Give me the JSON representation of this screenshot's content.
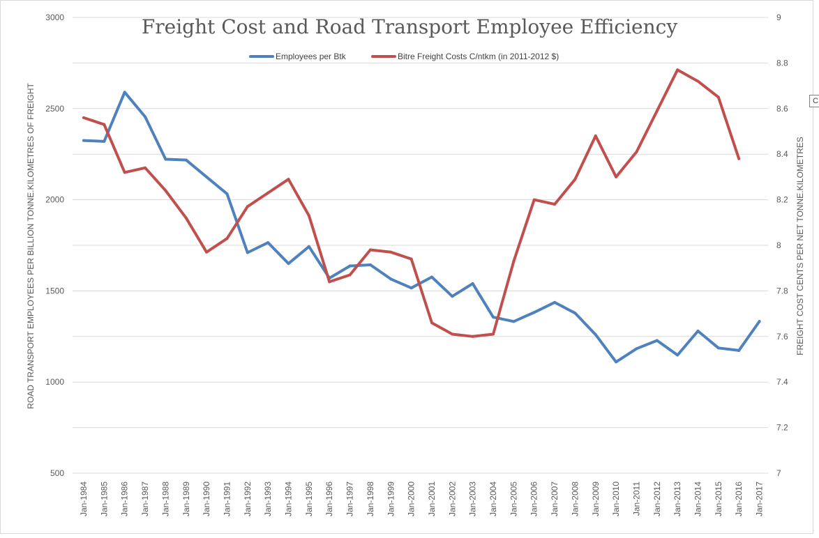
{
  "chart_data": {
    "type": "line",
    "title": "Freight Cost and Road Transport Employee Efficiency",
    "categories": [
      "Jan-1984",
      "Jan-1985",
      "Jan-1986",
      "Jan-1987",
      "Jan-1988",
      "Jan-1989",
      "Jan-1990",
      "Jan-1991",
      "Jan-1992",
      "Jan-1993",
      "Jan-1994",
      "Jan-1995",
      "Jan-1996",
      "Jan-1997",
      "Jan-1998",
      "Jan-1999",
      "Jan-2000",
      "Jan-2001",
      "Jan-2002",
      "Jan-2003",
      "Jan-2004",
      "Jan-2005",
      "Jan-2006",
      "Jan-2007",
      "Jan-2008",
      "Jan-2009",
      "Jan-2010",
      "Jan-2011",
      "Jan-2012",
      "Jan-2013",
      "Jan-2014",
      "Jan-2015",
      "Jan-2016",
      "Jan-2017"
    ],
    "ylabel_left": "ROAD TRANSPORT EMPLOYEES PER BILLION TONNE.KILOMETRES OF FREIGHT",
    "ylabel_right": "FREIGHT COST CENTS PER NET TONNE.KILOMETRES",
    "ylim_left": [
      500,
      3000
    ],
    "ylim_right": [
      7,
      9
    ],
    "yticks_left": [
      "500",
      "1000",
      "1500",
      "2000",
      "2500",
      "3000"
    ],
    "yticks_right": [
      "7",
      "7.2",
      "7.4",
      "7.6",
      "7.8",
      "8",
      "8.2",
      "8.4",
      "8.6",
      "8.8",
      "9"
    ],
    "grid": true,
    "legend_position": "top",
    "series": [
      {
        "name": "Employees per Btk",
        "axis": "left",
        "color": "#4f81bd",
        "values": [
          2325,
          2320,
          2590,
          2455,
          2222,
          2218,
          2125,
          2032,
          1710,
          1765,
          1650,
          1743,
          1570,
          1637,
          1643,
          1565,
          1516,
          1576,
          1470,
          1540,
          1356,
          1332,
          1382,
          1437,
          1378,
          1260,
          1110,
          1183,
          1228,
          1148,
          1280,
          1187,
          1173,
          1333
        ]
      },
      {
        "name": "Bitre Freight Costs C/ntkm (in 2011-2012 $)",
        "axis": "right",
        "color": "#c0504d",
        "values": [
          8.56,
          8.53,
          8.32,
          8.34,
          8.24,
          8.12,
          7.97,
          8.03,
          8.17,
          8.23,
          8.29,
          8.13,
          7.84,
          7.87,
          7.98,
          7.97,
          7.94,
          7.66,
          7.61,
          7.6,
          7.61,
          7.93,
          8.2,
          8.18,
          8.29,
          8.48,
          8.3,
          8.41,
          8.59,
          8.77,
          8.72,
          8.65,
          8.38,
          null
        ]
      }
    ]
  },
  "ui": {
    "side_tab_label": "C"
  }
}
